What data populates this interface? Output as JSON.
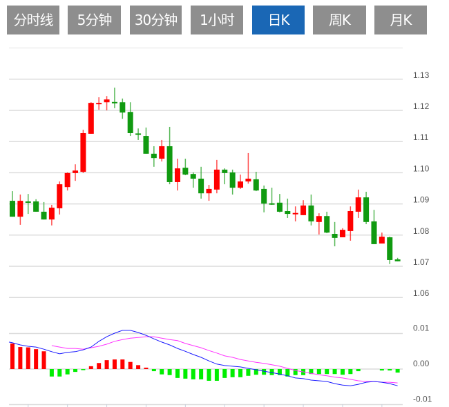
{
  "tabs": [
    {
      "label": "分时线",
      "active": false
    },
    {
      "label": "5分钟",
      "active": false
    },
    {
      "label": "30分钟",
      "active": false
    },
    {
      "label": "1小时",
      "active": false
    },
    {
      "label": "日K",
      "active": true
    },
    {
      "label": "周K",
      "active": false
    },
    {
      "label": "月K",
      "active": false
    }
  ],
  "colors": {
    "up": "#ff0000",
    "down": "#109a10",
    "hist_up": "#ff0000",
    "hist_down": "#00ee00",
    "dif": "#1a1aff",
    "dea": "#ff33ff",
    "tab_active": "#1a67b5",
    "tab": "#8e8e8e"
  },
  "chart_data": [
    {
      "type": "candlestick",
      "title": "",
      "ylim": [
        1.06,
        1.14
      ],
      "y_ticks": [
        "1.13",
        "1.12",
        "1.11",
        "1.10",
        "1.09",
        "1.08",
        "1.07",
        "1.06"
      ],
      "y_tick_values": [
        1.13,
        1.12,
        1.11,
        1.1,
        1.09,
        1.08,
        1.07,
        1.06
      ],
      "grid": true,
      "ohlc": [
        [
          1.091,
          1.0941,
          1.0859,
          1.0859
        ],
        [
          1.0859,
          1.093,
          1.0833,
          1.091
        ],
        [
          1.0908,
          1.0932,
          1.0868,
          1.0906
        ],
        [
          1.0908,
          1.0915,
          1.0875,
          1.0875
        ],
        [
          1.0875,
          1.0906,
          1.085,
          1.085
        ],
        [
          1.085,
          1.0897,
          1.0831,
          1.0888
        ],
        [
          1.0886,
          1.0972,
          1.0866,
          1.0963
        ],
        [
          1.0954,
          1.1001,
          1.0943,
          1.0999
        ],
        [
          1.0999,
          1.1027,
          1.0974,
          1.1007
        ],
        [
          1.1003,
          1.1138,
          1.0999,
          1.1127
        ],
        [
          1.1125,
          1.1226,
          1.1125,
          1.1224
        ],
        [
          1.1222,
          1.1242,
          1.1202,
          1.1224
        ],
        [
          1.1226,
          1.1246,
          1.12,
          1.1235
        ],
        [
          1.1227,
          1.1273,
          1.1207,
          1.1225
        ],
        [
          1.1226,
          1.1238,
          1.1173,
          1.1193
        ],
        [
          1.1195,
          1.1226,
          1.1118,
          1.1127
        ],
        [
          1.1126,
          1.1142,
          1.1105,
          1.1124
        ],
        [
          1.1118,
          1.1145,
          1.1061,
          1.1061
        ],
        [
          1.1061,
          1.1085,
          1.1019,
          1.1047
        ],
        [
          1.1045,
          1.1105,
          1.1036,
          1.1085
        ],
        [
          1.1085,
          1.1147,
          1.0963,
          1.097
        ],
        [
          1.097,
          1.1045,
          1.0943,
          1.1014
        ],
        [
          1.1016,
          1.1045,
          1.0992,
          1.0994
        ],
        [
          1.0996,
          1.1001,
          1.0952,
          1.0981
        ],
        [
          1.0981,
          1.1019,
          1.0917,
          1.0934
        ],
        [
          1.0934,
          1.0961,
          1.091,
          1.0948
        ],
        [
          1.0946,
          1.1041,
          1.0934,
          1.101
        ],
        [
          1.101,
          1.1014,
          1.0963,
          1.0999
        ],
        [
          1.1001,
          1.101,
          1.093,
          1.0952
        ],
        [
          1.0952,
          1.0994,
          1.0948,
          1.0972
        ],
        [
          1.0972,
          1.1063,
          1.0965,
          1.0981
        ],
        [
          1.0979,
          1.1003,
          1.0941,
          1.0943
        ],
        [
          1.0948,
          1.0959,
          1.0873,
          1.0901
        ],
        [
          1.0902,
          1.0952,
          1.0897,
          1.09
        ],
        [
          1.0904,
          1.0932,
          1.0873,
          1.0875
        ],
        [
          1.0877,
          1.0917,
          1.0855,
          1.0868
        ],
        [
          1.0869,
          1.0892,
          1.0844,
          1.0871
        ],
        [
          1.0864,
          1.0912,
          1.0864,
          1.0895
        ],
        [
          1.0895,
          1.093,
          1.0831,
          1.0844
        ],
        [
          1.0842,
          1.087,
          1.0802,
          1.0861
        ],
        [
          1.0861,
          1.0875,
          1.0806,
          1.0808
        ],
        [
          1.0804,
          1.0842,
          1.0764,
          1.0791
        ],
        [
          1.0793,
          1.0822,
          1.0793,
          1.0817
        ],
        [
          1.0813,
          1.0892,
          1.0782,
          1.0877
        ],
        [
          1.0875,
          1.0946,
          1.0855,
          1.0921
        ],
        [
          1.0921,
          1.0939,
          1.0835,
          1.0842
        ],
        [
          1.0844,
          1.0881,
          1.0771,
          1.0771
        ],
        [
          1.0773,
          1.0808,
          1.0773,
          1.0795
        ],
        [
          1.0793,
          1.0795,
          1.0707,
          1.072
        ],
        [
          1.0722,
          1.0727,
          1.0716,
          1.0716
        ]
      ]
    },
    {
      "type": "macd",
      "ylim": [
        -0.01,
        0.01
      ],
      "y_ticks": [
        "0.01",
        "0.00",
        "-0.01"
      ],
      "y_tick_values": [
        0.01,
        0.0,
        -0.01
      ],
      "histogram": [
        0.0072,
        0.0062,
        0.0061,
        0.0056,
        0.005,
        -0.0021,
        -0.0021,
        -0.0015,
        -0.0008,
        -0.0003,
        0.0008,
        0.0017,
        0.0025,
        0.0027,
        0.0027,
        0.002,
        0.0011,
        0.0004,
        -0.0006,
        -0.0015,
        -0.0017,
        -0.0025,
        -0.0027,
        -0.0029,
        -0.0029,
        -0.0033,
        -0.0033,
        -0.0025,
        -0.0023,
        -0.0023,
        -0.0019,
        -0.0016,
        -0.0016,
        -0.0017,
        -0.0017,
        -0.0021,
        -0.0017,
        -0.0017,
        -0.0014,
        -0.0014,
        -0.0014,
        -0.0014,
        -0.0016,
        -0.0014,
        -0.0006,
        0,
        0,
        -0.0004,
        -0.0004,
        -0.001
      ],
      "dif": [
        0.0074,
        0.0068,
        0.0064,
        0.0062,
        0.0056,
        0.0049,
        0.0043,
        0.0047,
        0.0049,
        0.0054,
        0.0062,
        0.0078,
        0.0091,
        0.0101,
        0.0109,
        0.0109,
        0.0103,
        0.0095,
        0.0085,
        0.0076,
        0.0068,
        0.0058,
        0.005,
        0.0041,
        0.0033,
        0.0023,
        0.0014,
        0.001,
        0.0008,
        0.0006,
        0.0002,
        -0.0002,
        -0.0006,
        -0.001,
        -0.0014,
        -0.0019,
        -0.0025,
        -0.0027,
        -0.0031,
        -0.0033,
        -0.0035,
        -0.0041,
        -0.0045,
        -0.0047,
        -0.0043,
        -0.0037,
        -0.0035,
        -0.0037,
        -0.0041,
        -0.0047
      ],
      "dea": [
        null,
        null,
        null,
        null,
        null,
        0.0066,
        0.0062,
        0.0058,
        0.0058,
        0.0056,
        0.006,
        0.0064,
        0.007,
        0.0078,
        0.0083,
        0.0087,
        0.0089,
        0.0091,
        0.0091,
        0.0087,
        0.0083,
        0.008,
        0.0072,
        0.0066,
        0.006,
        0.0052,
        0.0045,
        0.0037,
        0.0033,
        0.0027,
        0.0023,
        0.0019,
        0.0016,
        0.0012,
        0.0008,
        0.0002,
        -0.0004,
        -0.0008,
        -0.0012,
        -0.0016,
        -0.0019,
        -0.0023,
        -0.0025,
        -0.0029,
        -0.0033,
        -0.0035,
        -0.0035,
        -0.0037,
        -0.0037,
        -0.0039
      ]
    }
  ]
}
